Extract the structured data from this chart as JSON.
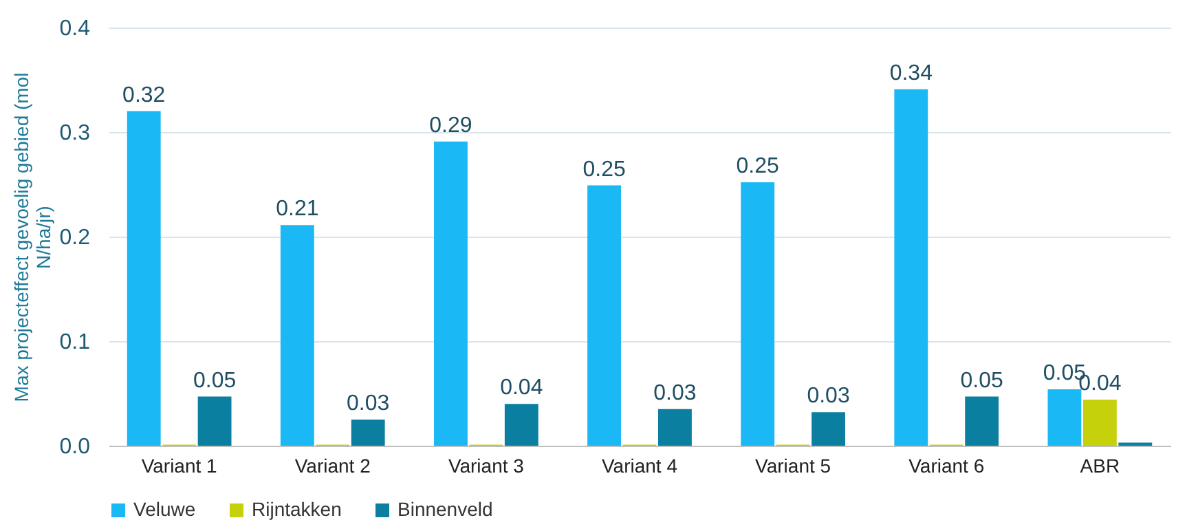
{
  "chart_data": {
    "type": "bar",
    "ylabel": "Max projecteffect gevoelig gebied (mol N/ha/jr)",
    "categories": [
      "Variant 1",
      "Variant 2",
      "Variant 3",
      "Variant 4",
      "Variant 5",
      "Variant 6",
      "ABR"
    ],
    "series": [
      {
        "name": "Veluwe",
        "color": "#1ab8f5",
        "values": [
          0.32,
          0.211,
          0.291,
          0.249,
          0.252,
          0.341,
          0.054
        ],
        "value_labels": [
          "0.32",
          "0.21",
          "0.29",
          "0.25",
          "0.25",
          "0.34",
          "0.05"
        ]
      },
      {
        "name": "Rijntakken",
        "color": "#c5d10a",
        "values": [
          0.001,
          0.001,
          0.001,
          0.001,
          0.001,
          0.001,
          0.044
        ],
        "value_labels": [
          null,
          null,
          null,
          null,
          null,
          null,
          "0.04"
        ]
      },
      {
        "name": "Binnenveld",
        "color": "#0b7fa0",
        "values": [
          0.047,
          0.025,
          0.04,
          0.035,
          0.032,
          0.047,
          0.003
        ],
        "value_labels": [
          "0.05",
          "0.03",
          "0.04",
          "0.03",
          "0.03",
          "0.05",
          null
        ]
      }
    ],
    "ylim": [
      0,
      0.4
    ],
    "yticks": [
      {
        "value": 0,
        "label": "0.0"
      },
      0.1,
      0.2,
      0.3,
      0.4
    ],
    "grid": "y",
    "legend": "bottom"
  }
}
